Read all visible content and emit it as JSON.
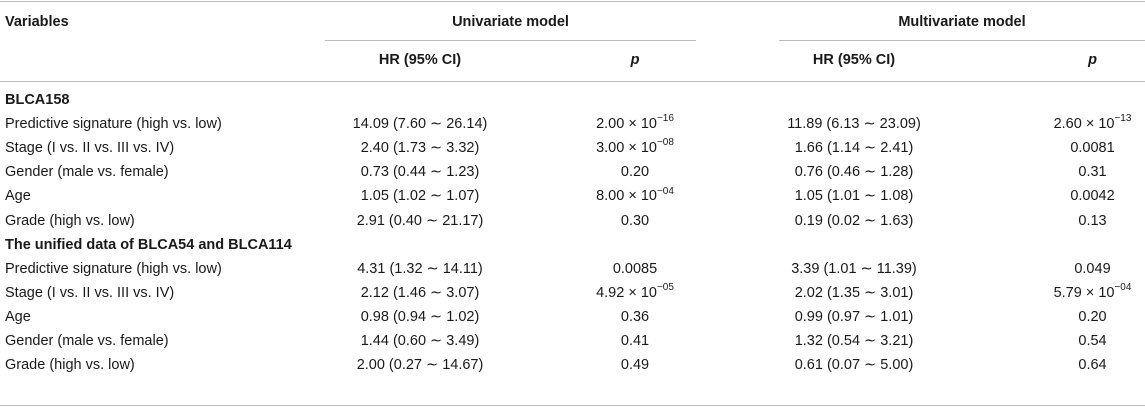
{
  "header": {
    "variables": "Variables",
    "univariate": "Univariate model",
    "multivariate": "Multivariate model",
    "hr_label": "HR (95% CI)",
    "p_label": "p"
  },
  "sections": [
    {
      "title": "BLCA158",
      "rows": [
        {
          "variable": "Predictive signature (high vs. low)",
          "uni_hr": "14.09 (7.60 ∼ 26.14)",
          "uni_p_base": "2.00 × 10",
          "uni_p_exp": "−16",
          "multi_hr": "11.89 (6.13 ∼ 23.09)",
          "multi_p_base": "2.60 × 10",
          "multi_p_exp": "−13"
        },
        {
          "variable": "Stage (I vs. II vs. III vs. IV)",
          "uni_hr": "2.40 (1.73 ∼ 3.32)",
          "uni_p_base": "3.00 × 10",
          "uni_p_exp": "−08",
          "multi_hr": "1.66 (1.14 ∼ 2.41)",
          "multi_p_base": "0.0081",
          "multi_p_exp": ""
        },
        {
          "variable": "Gender (male vs. female)",
          "uni_hr": "0.73 (0.44 ∼ 1.23)",
          "uni_p_base": "0.20",
          "uni_p_exp": "",
          "multi_hr": "0.76 (0.46 ∼ 1.28)",
          "multi_p_base": "0.31",
          "multi_p_exp": ""
        },
        {
          "variable": "Age",
          "uni_hr": "1.05 (1.02 ∼ 1.07)",
          "uni_p_base": "8.00 × 10",
          "uni_p_exp": "−04",
          "multi_hr": "1.05 (1.01 ∼ 1.08)",
          "multi_p_base": "0.0042",
          "multi_p_exp": ""
        },
        {
          "variable": "Grade (high vs. low)",
          "uni_hr": "2.91 (0.40 ∼ 21.17)",
          "uni_p_base": "0.30",
          "uni_p_exp": "",
          "multi_hr": "0.19 (0.02 ∼ 1.63)",
          "multi_p_base": "0.13",
          "multi_p_exp": ""
        }
      ]
    },
    {
      "title": "The unified data of BLCA54 and BLCA114",
      "rows": [
        {
          "variable": "Predictive signature (high vs. low)",
          "uni_hr": "4.31 (1.32 ∼ 14.11)",
          "uni_p_base": "0.0085",
          "uni_p_exp": "",
          "multi_hr": "3.39 (1.01 ∼ 11.39)",
          "multi_p_base": "0.049",
          "multi_p_exp": ""
        },
        {
          "variable": "Stage (I vs. II vs. III vs. IV)",
          "uni_hr": "2.12 (1.46 ∼ 3.07)",
          "uni_p_base": "4.92 × 10",
          "uni_p_exp": "−05",
          "multi_hr": "2.02 (1.35 ∼ 3.01)",
          "multi_p_base": "5.79 × 10",
          "multi_p_exp": "−04"
        },
        {
          "variable": "Age",
          "uni_hr": "0.98 (0.94 ∼ 1.02)",
          "uni_p_base": "0.36",
          "uni_p_exp": "",
          "multi_hr": "0.99 (0.97 ∼ 1.01)",
          "multi_p_base": "0.20",
          "multi_p_exp": ""
        },
        {
          "variable": "Gender (male vs. female)",
          "uni_hr": "1.44 (0.60 ∼ 3.49)",
          "uni_p_base": "0.41",
          "uni_p_exp": "",
          "multi_hr": "1.32 (0.54 ∼ 3.21)",
          "multi_p_base": "0.54",
          "multi_p_exp": ""
        },
        {
          "variable": "Grade (high vs. low)",
          "uni_hr": "2.00 (0.27 ∼ 14.67)",
          "uni_p_base": "0.49",
          "uni_p_exp": "",
          "multi_hr": "0.61 (0.07 ∼ 5.00)",
          "multi_p_base": "0.64",
          "multi_p_exp": ""
        }
      ]
    }
  ]
}
